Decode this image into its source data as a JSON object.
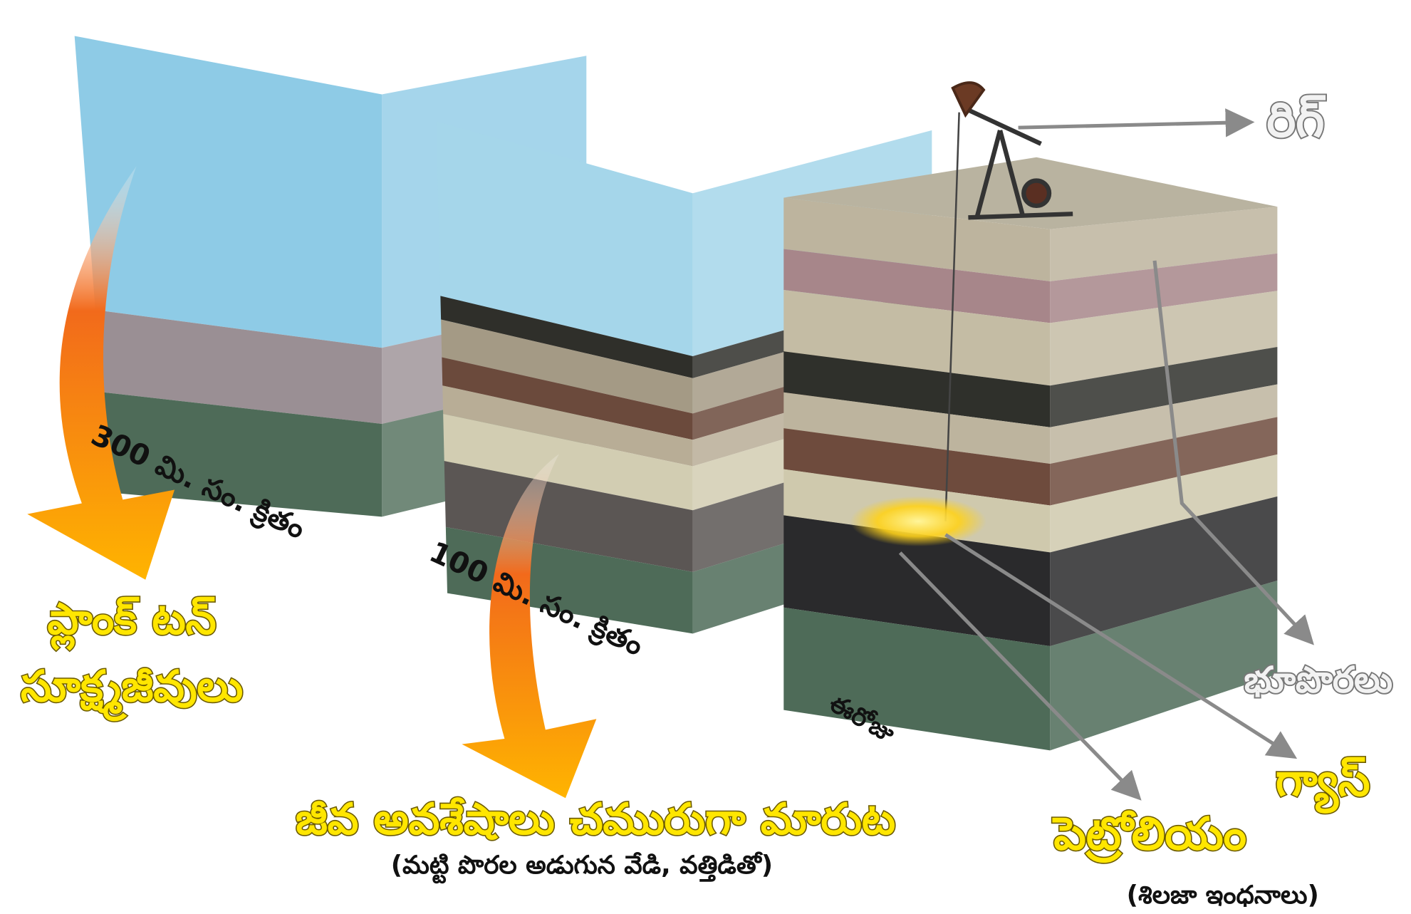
{
  "labels": {
    "rig": "రిగ్",
    "time_300": "300 మి. సం. క్రితం",
    "time_100": "100 మి. సం. క్రితం",
    "today": "ఈరోజు",
    "plankton_1": "ప్లాంక్ టన్",
    "plankton_2": "సూక్ష్మజీవులు",
    "remains": "జీవ అవశేషాలు చమురుగా మారుట",
    "remains_note": "(మట్టి పొరల అడుగున వేడి, వత్తిడితో)",
    "layers": "భూపొరలు",
    "gas": "గ్యాస్",
    "petroleum": "పెట్రోలియం",
    "petroleum_note": "(శిలజా ఇంధనాలు)"
  }
}
